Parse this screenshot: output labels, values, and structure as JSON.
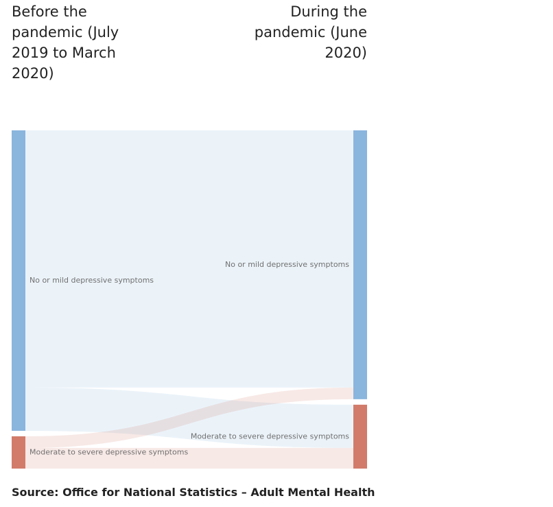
{
  "chart_data": {
    "type": "sankey",
    "stages": [
      {
        "title": "Before the pandemic (July 2019 to March 2020)",
        "nodes": [
          {
            "name": "No or mild depressive symptoms",
            "color": "#8ab5dd"
          },
          {
            "name": "Moderate to severe depressive symptoms",
            "color": "#d27b6b"
          }
        ]
      },
      {
        "title": "During the pandemic (June 2020)",
        "nodes": [
          {
            "name": "No or mild depressive symptoms",
            "color": "#8ab5dd"
          },
          {
            "name": "Moderate to severe depressive symptoms",
            "color": "#d27b6b"
          }
        ]
      }
    ],
    "links": [
      {
        "source": 0,
        "target": 0,
        "value": 77.3
      },
      {
        "source": 0,
        "target": 1,
        "value": 13.0
      },
      {
        "source": 1,
        "target": 0,
        "value": 3.5
      },
      {
        "source": 1,
        "target": 1,
        "value": 6.2
      }
    ],
    "source_note": "Source: Office for National Statistics – Adult Mental Health"
  }
}
